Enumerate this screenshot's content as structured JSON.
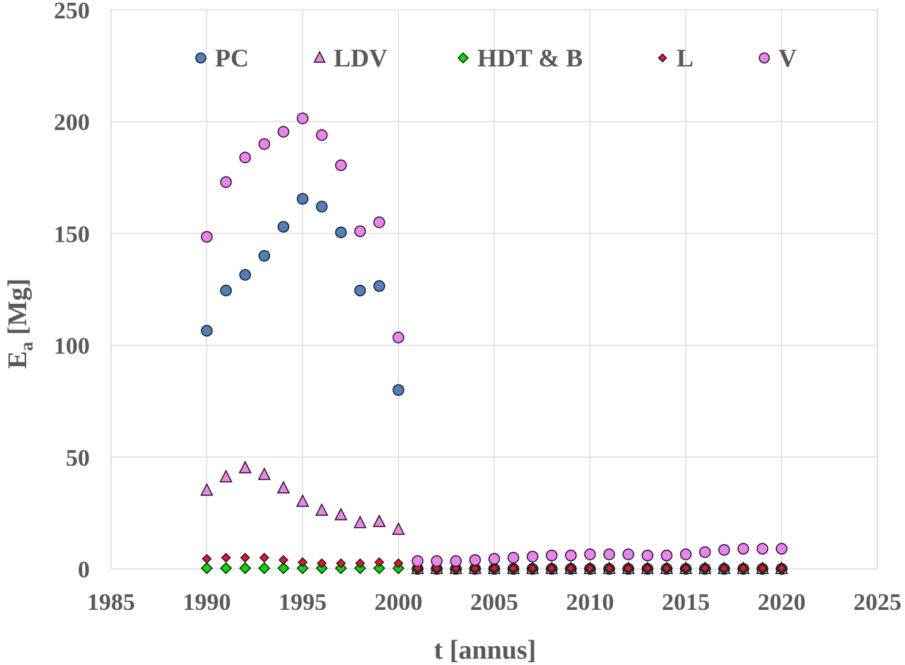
{
  "chart_data": {
    "type": "scatter",
    "title": "",
    "xlabel": "t [annus]",
    "ylabel_main": "E",
    "ylabel_sub": "a",
    "ylabel_unit": " [Mg]",
    "xlim": [
      1985,
      2025
    ],
    "ylim": [
      0,
      250
    ],
    "xticks": [
      1985,
      1990,
      1995,
      2000,
      2005,
      2010,
      2015,
      2020,
      2025
    ],
    "yticks": [
      0,
      50,
      100,
      150,
      200,
      250
    ],
    "grid": true,
    "legend_position": "top",
    "series": [
      {
        "name": "PC",
        "marker": "circle",
        "color": "#4F81BD",
        "x": [
          1990,
          1991,
          1992,
          1993,
          1994,
          1995,
          1996,
          1997,
          1998,
          1999,
          2000,
          2001,
          2002,
          2003,
          2004,
          2005,
          2006,
          2007,
          2008,
          2009,
          2010,
          2011,
          2012,
          2013,
          2014,
          2015,
          2016,
          2017,
          2018,
          2019,
          2020
        ],
        "y": [
          106.5,
          124.5,
          131.5,
          140,
          153,
          165.5,
          162,
          150.5,
          124.5,
          126.5,
          80,
          0,
          0,
          0,
          0,
          0,
          0,
          0,
          0,
          0,
          0,
          0,
          0,
          0,
          0,
          0,
          0,
          0,
          0,
          0,
          0
        ]
      },
      {
        "name": "LDV",
        "marker": "triangle",
        "color": "#EE82EE",
        "x": [
          1990,
          1991,
          1992,
          1993,
          1994,
          1995,
          1996,
          1997,
          1998,
          1999,
          2000,
          2001,
          2002,
          2003,
          2004,
          2005,
          2006,
          2007,
          2008,
          2009,
          2010,
          2011,
          2012,
          2013,
          2014,
          2015,
          2016,
          2017,
          2018,
          2019,
          2020
        ],
        "y": [
          35,
          41,
          45,
          42,
          36,
          30,
          26,
          24,
          20.5,
          21,
          17.5,
          0,
          0,
          0,
          0,
          0,
          0,
          0,
          0,
          0,
          0,
          0,
          0,
          0,
          0,
          0,
          0,
          0,
          0,
          0,
          0
        ]
      },
      {
        "name": "HDT & B",
        "marker": "diamond",
        "color": "#00E000",
        "x": [
          1990,
          1991,
          1992,
          1993,
          1994,
          1995,
          1996,
          1997,
          1998,
          1999,
          2000,
          2001,
          2002,
          2003,
          2004,
          2005,
          2006,
          2007,
          2008,
          2009,
          2010,
          2011,
          2012,
          2013,
          2014,
          2015,
          2016,
          2017,
          2018,
          2019,
          2020
        ],
        "y": [
          0.3,
          0.3,
          0.3,
          0.3,
          0.3,
          0.3,
          0.3,
          0.3,
          0.3,
          0.3,
          0.3,
          0,
          0,
          0,
          0,
          0,
          0,
          0,
          0,
          0,
          0,
          0,
          0,
          0,
          0,
          0,
          0,
          0,
          0,
          0,
          0
        ]
      },
      {
        "name": "L",
        "marker": "diamond",
        "color": "#E8132E",
        "x": [
          1990,
          1991,
          1992,
          1993,
          1994,
          1995,
          1996,
          1997,
          1998,
          1999,
          2000,
          2001,
          2002,
          2003,
          2004,
          2005,
          2006,
          2007,
          2008,
          2009,
          2010,
          2011,
          2012,
          2013,
          2014,
          2015,
          2016,
          2017,
          2018,
          2019,
          2020
        ],
        "y": [
          4.5,
          5,
          5,
          5,
          4,
          3,
          2.5,
          2.5,
          2.5,
          3,
          2.5,
          0.3,
          0.3,
          0.3,
          0.3,
          0.3,
          0.3,
          0.3,
          0.3,
          0.3,
          0.3,
          0.3,
          0.3,
          0.3,
          0.3,
          0.3,
          0.3,
          0.3,
          0.3,
          0.3,
          0.3
        ]
      },
      {
        "name": "V",
        "marker": "circle",
        "color": "#EE82EE",
        "x": [
          1990,
          1991,
          1992,
          1993,
          1994,
          1995,
          1996,
          1997,
          1998,
          1999,
          2000,
          2001,
          2002,
          2003,
          2004,
          2005,
          2006,
          2007,
          2008,
          2009,
          2010,
          2011,
          2012,
          2013,
          2014,
          2015,
          2016,
          2017,
          2018,
          2019,
          2020
        ],
        "y": [
          148.5,
          173,
          184,
          190,
          195.5,
          201.5,
          194,
          180.5,
          151,
          155,
          103.5,
          3.5,
          3.5,
          3.5,
          4,
          4.5,
          5,
          5.5,
          6,
          6,
          6.5,
          6.5,
          6.5,
          6,
          6,
          6.5,
          7.5,
          8.5,
          9,
          9,
          9
        ]
      }
    ]
  }
}
